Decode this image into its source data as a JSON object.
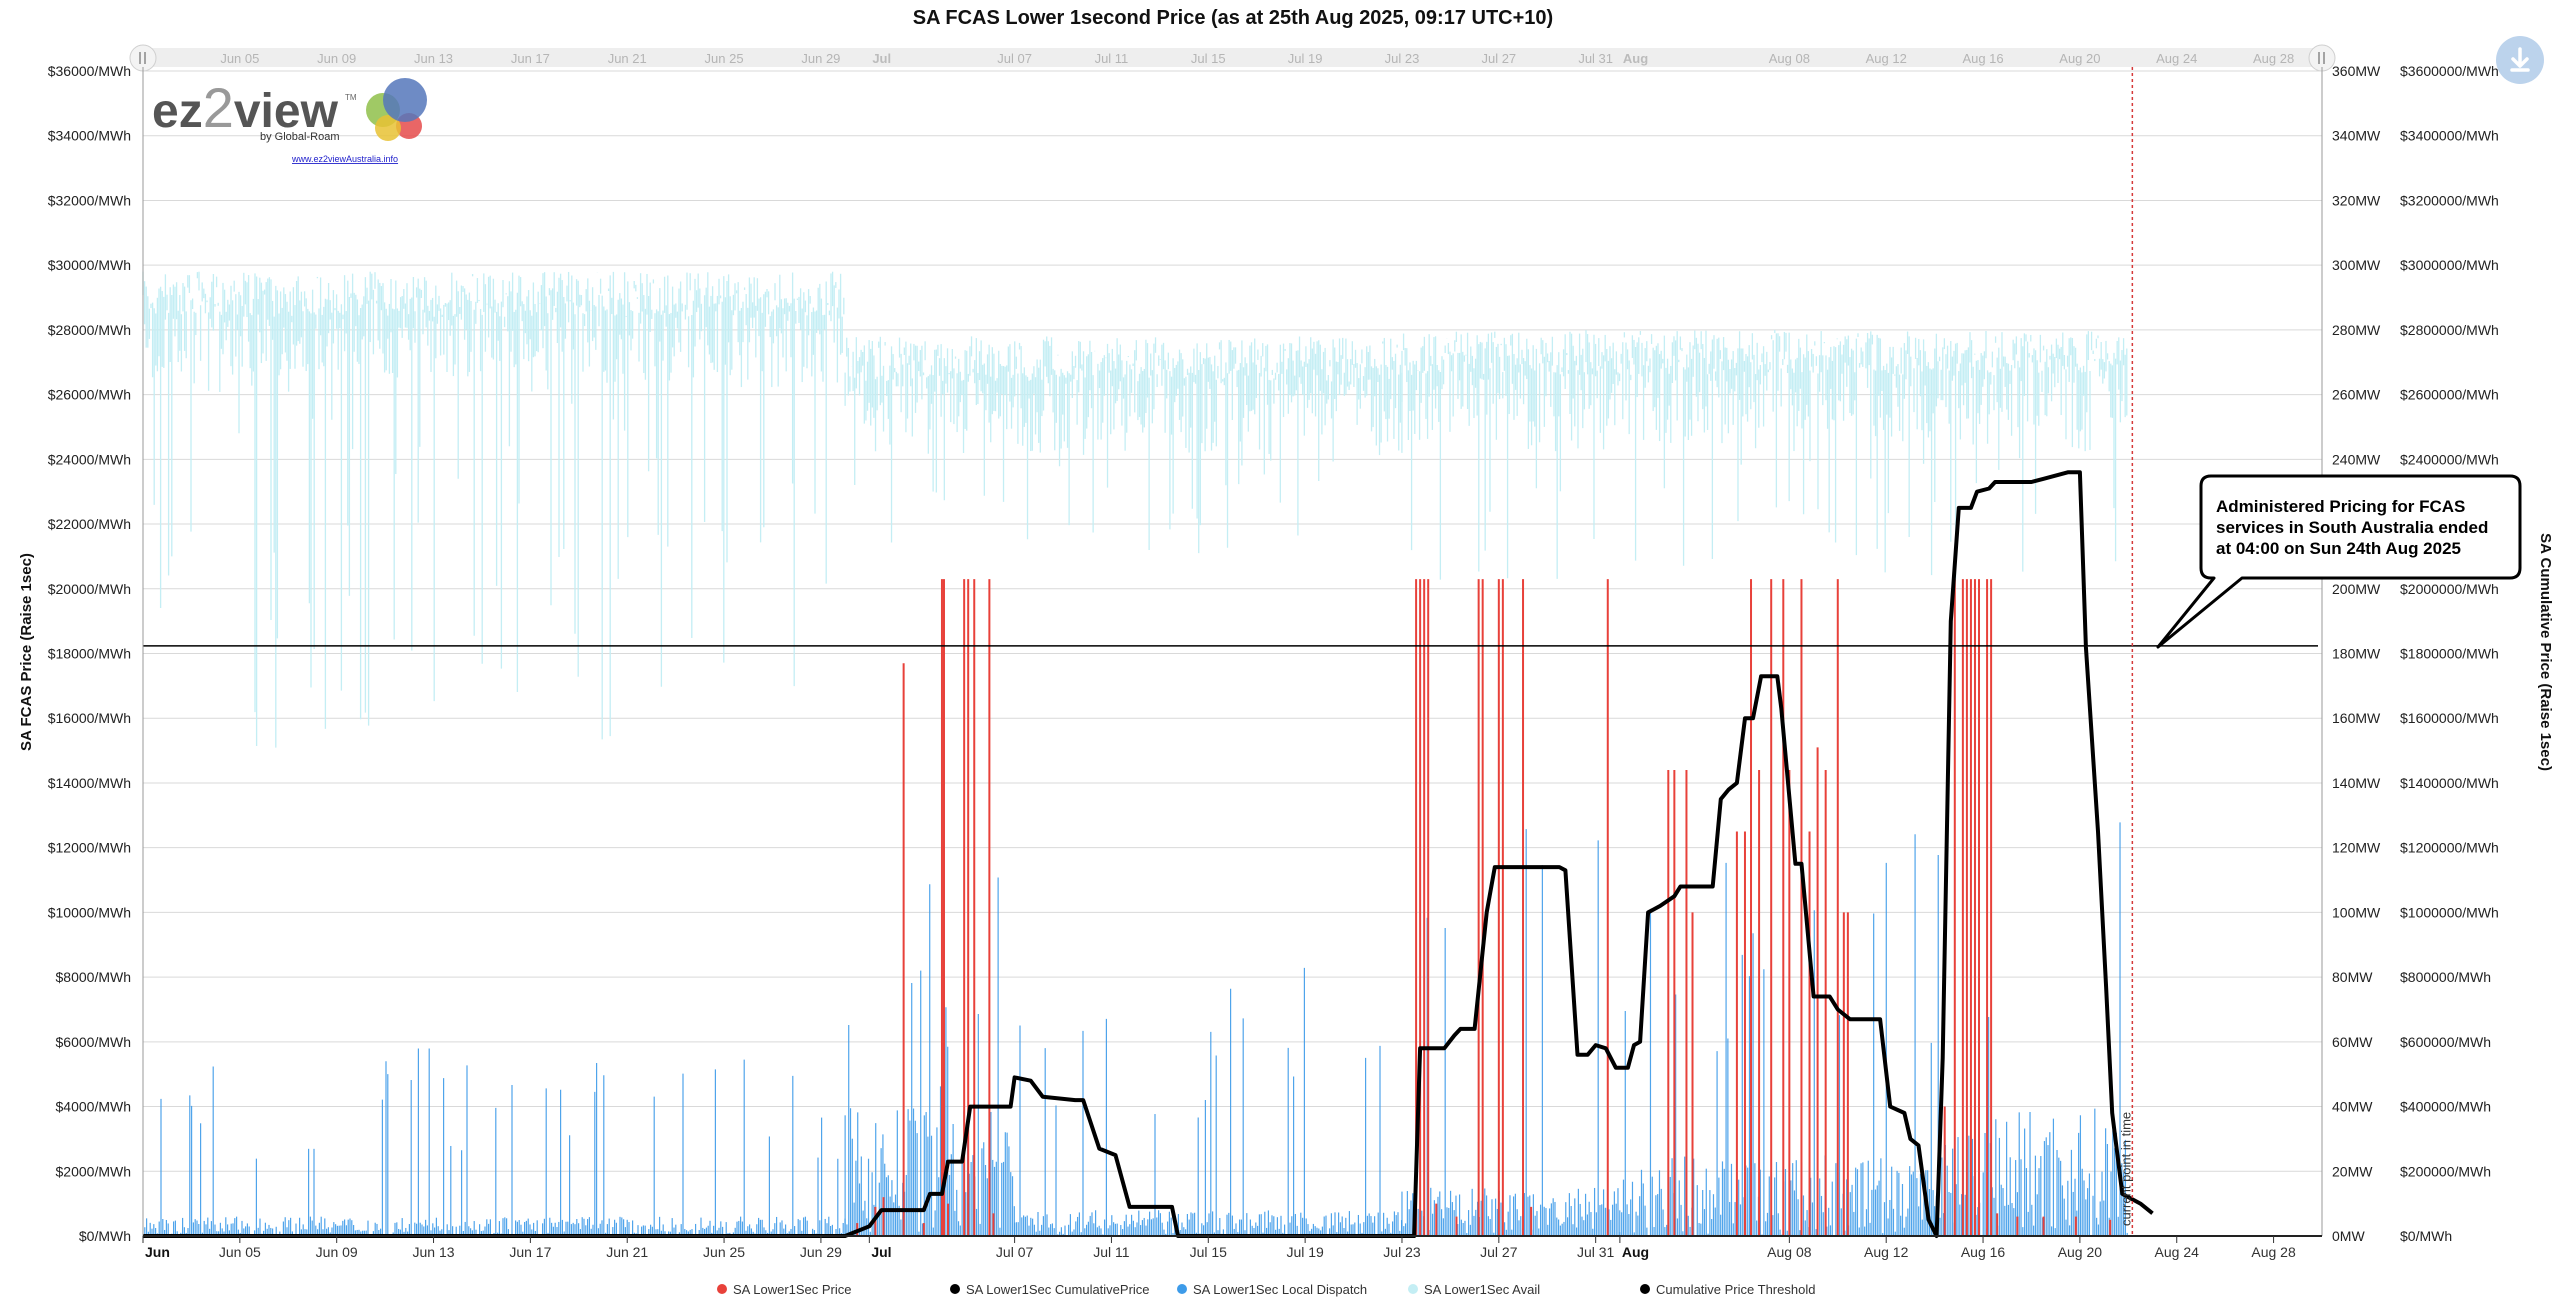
{
  "chart_data": {
    "type": "line",
    "title": "SA FCAS Lower 1second Price (as at 25th Aug 2025, 09:17 UTC+10)",
    "x_axis": {
      "start": "2025-06-01",
      "end": "2025-08-30",
      "ticks": [
        {
          "date": "2025-06-01",
          "label": "Jun",
          "bold": true
        },
        {
          "date": "2025-06-05",
          "label": "Jun 05"
        },
        {
          "date": "2025-06-09",
          "label": "Jun 09"
        },
        {
          "date": "2025-06-13",
          "label": "Jun 13"
        },
        {
          "date": "2025-06-17",
          "label": "Jun 17"
        },
        {
          "date": "2025-06-21",
          "label": "Jun 21"
        },
        {
          "date": "2025-06-25",
          "label": "Jun 25"
        },
        {
          "date": "2025-06-29",
          "label": "Jun 29"
        },
        {
          "date": "2025-07-01",
          "label": "Jul",
          "bold": true
        },
        {
          "date": "2025-07-07",
          "label": "Jul 07"
        },
        {
          "date": "2025-07-11",
          "label": "Jul 11"
        },
        {
          "date": "2025-07-15",
          "label": "Jul 15"
        },
        {
          "date": "2025-07-19",
          "label": "Jul 19"
        },
        {
          "date": "2025-07-23",
          "label": "Jul 23"
        },
        {
          "date": "2025-07-27",
          "label": "Jul 27"
        },
        {
          "date": "2025-07-31",
          "label": "Jul 31"
        },
        {
          "date": "2025-08-01",
          "label": "Aug",
          "bold": true
        },
        {
          "date": "2025-08-08",
          "label": "Aug 08"
        },
        {
          "date": "2025-08-12",
          "label": "Aug 12"
        },
        {
          "date": "2025-08-16",
          "label": "Aug 16"
        },
        {
          "date": "2025-08-20",
          "label": "Aug 20"
        },
        {
          "date": "2025-08-24",
          "label": "Aug 24"
        },
        {
          "date": "2025-08-28",
          "label": "Aug 28"
        }
      ]
    },
    "navigator_ticks": [
      {
        "date": "2025-06-01",
        "label": "Jun"
      },
      {
        "date": "2025-06-05",
        "label": "Jun 05"
      },
      {
        "date": "2025-06-09",
        "label": "Jun 09"
      },
      {
        "date": "2025-06-13",
        "label": "Jun 13"
      },
      {
        "date": "2025-06-17",
        "label": "Jun 17"
      },
      {
        "date": "2025-06-21",
        "label": "Jun 21"
      },
      {
        "date": "2025-06-25",
        "label": "Jun 25"
      },
      {
        "date": "2025-06-29",
        "label": "Jun 29"
      },
      {
        "date": "2025-07-01",
        "label": "Jul",
        "bold": true
      },
      {
        "date": "2025-07-07",
        "label": "Jul 07"
      },
      {
        "date": "2025-07-11",
        "label": "Jul 11"
      },
      {
        "date": "2025-07-15",
        "label": "Jul 15"
      },
      {
        "date": "2025-07-19",
        "label": "Jul 19"
      },
      {
        "date": "2025-07-23",
        "label": "Jul 23"
      },
      {
        "date": "2025-07-27",
        "label": "Jul 27"
      },
      {
        "date": "2025-07-31",
        "label": "Jul 31"
      },
      {
        "date": "2025-08-01",
        "label": "Aug",
        "bold": true
      },
      {
        "date": "2025-08-08",
        "label": "Aug 08"
      },
      {
        "date": "2025-08-12",
        "label": "Aug 12"
      },
      {
        "date": "2025-08-16",
        "label": "Aug 16"
      },
      {
        "date": "2025-08-20",
        "label": "Aug 20"
      },
      {
        "date": "2025-08-24",
        "label": "Aug 24"
      },
      {
        "date": "2025-08-28",
        "label": "Aug 28"
      }
    ],
    "y_axes": [
      {
        "id": "price",
        "title": "SA FCAS Price (Raise 1sec)",
        "side": "left",
        "min": 0,
        "max": 36000,
        "step": 2000,
        "tick_labels": [
          "$0/MWh",
          "$2000/MWh",
          "$4000/MWh",
          "$6000/MWh",
          "$8000/MWh",
          "$10000/MWh",
          "$12000/MWh",
          "$14000/MWh",
          "$16000/MWh",
          "$18000/MWh",
          "$20000/MWh",
          "$22000/MWh",
          "$24000/MWh",
          "$26000/MWh",
          "$28000/MWh",
          "$30000/MWh",
          "$32000/MWh",
          "$34000/MWh",
          "$36000/MWh"
        ]
      },
      {
        "id": "mw",
        "title": "",
        "side": "right",
        "min": 0,
        "max": 360,
        "step": 20,
        "tick_labels": [
          "0MW",
          "20MW",
          "40MW",
          "60MW",
          "80MW",
          "100MW",
          "120MW",
          "140MW",
          "160MW",
          "180MW",
          "200MW",
          "220MW",
          "240MW",
          "260MW",
          "280MW",
          "300MW",
          "320MW",
          "340MW",
          "360MW"
        ]
      },
      {
        "id": "cumulative",
        "title": "SA Cumulative Price (Raise 1sec)",
        "side": "right",
        "min": 0,
        "max": 3600000,
        "step": 200000,
        "tick_labels": [
          "$0/MWh",
          "$200000/MWh",
          "$400000/MWh",
          "$600000/MWh",
          "$800000/MWh",
          "$1000000/MWh",
          "$1200000/MWh",
          "$1400000/MWh",
          "$1600000/MWh",
          "$1800000/MWh",
          "$2000000/MWh",
          "$2200000/MWh",
          "$2400000/MWh",
          "$2600000/MWh",
          "$2800000/MWh",
          "$3000000/MWh",
          "$3200000/MWh",
          "$3400000/MWh",
          "$3600000/MWh"
        ]
      }
    ],
    "grid": true,
    "legend_position": "bottom",
    "series": [
      {
        "name": "SA Lower1Sec Price",
        "type": "column",
        "axis": "price",
        "color": "#e8413a",
        "spikes": [
          [
            "2025-06-30T12:00",
            400
          ],
          [
            "2025-07-01T06:00",
            900
          ],
          [
            "2025-07-01T14:00",
            1200
          ],
          [
            "2025-07-02T10:00",
            17700
          ],
          [
            "2025-07-03T06:00",
            400
          ],
          [
            "2025-07-04T00:00",
            20300
          ],
          [
            "2025-07-04T02:00",
            20300
          ],
          [
            "2025-07-04T06:00",
            1000
          ],
          [
            "2025-07-04T22:00",
            20300
          ],
          [
            "2025-07-05T02:00",
            20300
          ],
          [
            "2025-07-05T08:00",
            20300
          ],
          [
            "2025-07-05T23:00",
            20300
          ],
          [
            "2025-07-06T03:00",
            700
          ],
          [
            "2025-07-23T14:00",
            20300
          ],
          [
            "2025-07-23T18:00",
            20300
          ],
          [
            "2025-07-23T22:00",
            20300
          ],
          [
            "2025-07-24T02:00",
            20300
          ],
          [
            "2025-07-24T10:00",
            1000
          ],
          [
            "2025-07-25T06:00",
            600
          ],
          [
            "2025-07-26T04:00",
            20300
          ],
          [
            "2025-07-26T08:00",
            20300
          ],
          [
            "2025-07-27T00:00",
            20300
          ],
          [
            "2025-07-27T04:00",
            20300
          ],
          [
            "2025-07-28T00:00",
            20300
          ],
          [
            "2025-07-28T08:00",
            900
          ],
          [
            "2025-07-31T12:00",
            20300
          ],
          [
            "2025-08-03T00:00",
            14400
          ],
          [
            "2025-08-03T06:00",
            14400
          ],
          [
            "2025-08-03T18:00",
            14400
          ],
          [
            "2025-08-04T00:00",
            10000
          ],
          [
            "2025-08-05T20:00",
            12500
          ],
          [
            "2025-08-06T04:00",
            12500
          ],
          [
            "2025-08-06T10:00",
            20300
          ],
          [
            "2025-08-06T18:00",
            14400
          ],
          [
            "2025-08-07T06:00",
            20300
          ],
          [
            "2025-08-07T18:00",
            20300
          ],
          [
            "2025-08-08T00:00",
            14400
          ],
          [
            "2025-08-08T12:00",
            20300
          ],
          [
            "2025-08-08T20:00",
            12500
          ],
          [
            "2025-08-09T04:00",
            15100
          ],
          [
            "2025-08-09T12:00",
            14400
          ],
          [
            "2025-08-10T00:00",
            20300
          ],
          [
            "2025-08-10T06:00",
            10000
          ],
          [
            "2025-08-10T10:00",
            10000
          ],
          [
            "2025-08-14T10:00",
            4000
          ],
          [
            "2025-08-14T20:00",
            20300
          ],
          [
            "2025-08-15T04:00",
            20300
          ],
          [
            "2025-08-15T08:00",
            20300
          ],
          [
            "2025-08-15T12:00",
            20300
          ],
          [
            "2025-08-15T16:00",
            20300
          ],
          [
            "2025-08-15T20:00",
            20300
          ],
          [
            "2025-08-16T04:00",
            20300
          ],
          [
            "2025-08-16T08:00",
            20300
          ],
          [
            "2025-08-16T14:00",
            700
          ],
          [
            "2025-08-17T10:00",
            600
          ],
          [
            "2025-08-18T12:00",
            600
          ],
          [
            "2025-08-19T20:00",
            600
          ],
          [
            "2025-08-21T06:00",
            500
          ]
        ]
      },
      {
        "name": "SA Lower1Sec CumulativePrice",
        "type": "line",
        "axis": "cumulative",
        "color": "#000000",
        "points": [
          [
            "2025-06-01T00:00",
            0
          ],
          [
            "2025-06-30T00:00",
            0
          ],
          [
            "2025-07-01T00:00",
            30000
          ],
          [
            "2025-07-01T12:00",
            80000
          ],
          [
            "2025-07-03T06:00",
            80000
          ],
          [
            "2025-07-03T12:00",
            130000
          ],
          [
            "2025-07-04T00:00",
            130000
          ],
          [
            "2025-07-04T06:00",
            230000
          ],
          [
            "2025-07-04T20:00",
            230000
          ],
          [
            "2025-07-05T04:00",
            400000
          ],
          [
            "2025-07-06T00:00",
            400000
          ],
          [
            "2025-07-06T20:00",
            400000
          ],
          [
            "2025-07-07T00:00",
            490000
          ],
          [
            "2025-07-07T16:00",
            480000
          ],
          [
            "2025-07-08T04:00",
            430000
          ],
          [
            "2025-07-09T12:00",
            420000
          ],
          [
            "2025-07-09T20:00",
            420000
          ],
          [
            "2025-07-10T12:00",
            270000
          ],
          [
            "2025-07-11T04:00",
            250000
          ],
          [
            "2025-07-11T18:00",
            90000
          ],
          [
            "2025-07-13T12:00",
            90000
          ],
          [
            "2025-07-13T18:00",
            0
          ],
          [
            "2025-07-23T12:00",
            0
          ],
          [
            "2025-07-23T18:00",
            580000
          ],
          [
            "2025-07-24T18:00",
            580000
          ],
          [
            "2025-07-25T04:00",
            620000
          ],
          [
            "2025-07-25T10:00",
            640000
          ],
          [
            "2025-07-26T00:00",
            640000
          ],
          [
            "2025-07-26T12:00",
            1000000
          ],
          [
            "2025-07-26T20:00",
            1140000
          ],
          [
            "2025-07-29T12:00",
            1140000
          ],
          [
            "2025-07-29T18:00",
            1130000
          ],
          [
            "2025-07-30T06:00",
            560000
          ],
          [
            "2025-07-30T16:00",
            560000
          ],
          [
            "2025-07-31T00:00",
            590000
          ],
          [
            "2025-07-31T10:00",
            580000
          ],
          [
            "2025-07-31T20:00",
            520000
          ],
          [
            "2025-08-01T08:00",
            520000
          ],
          [
            "2025-08-01T14:00",
            590000
          ],
          [
            "2025-08-01T20:00",
            600000
          ],
          [
            "2025-08-02T04:00",
            1000000
          ],
          [
            "2025-08-02T16:00",
            1020000
          ],
          [
            "2025-08-03T06:00",
            1050000
          ],
          [
            "2025-08-03T12:00",
            1080000
          ],
          [
            "2025-08-04T20:00",
            1080000
          ],
          [
            "2025-08-05T04:00",
            1350000
          ],
          [
            "2025-08-05T12:00",
            1380000
          ],
          [
            "2025-08-05T20:00",
            1400000
          ],
          [
            "2025-08-06T04:00",
            1600000
          ],
          [
            "2025-08-06T12:00",
            1600000
          ],
          [
            "2025-08-06T20:00",
            1730000
          ],
          [
            "2025-08-07T12:00",
            1730000
          ],
          [
            "2025-08-07T16:00",
            1630000
          ],
          [
            "2025-08-08T06:00",
            1150000
          ],
          [
            "2025-08-08T12:00",
            1150000
          ],
          [
            "2025-08-09T00:00",
            740000
          ],
          [
            "2025-08-09T16:00",
            740000
          ],
          [
            "2025-08-10T00:00",
            700000
          ],
          [
            "2025-08-10T12:00",
            670000
          ],
          [
            "2025-08-11T18:00",
            670000
          ],
          [
            "2025-08-12T04:00",
            400000
          ],
          [
            "2025-08-12T18:00",
            380000
          ],
          [
            "2025-08-13T00:00",
            300000
          ],
          [
            "2025-08-13T08:00",
            280000
          ],
          [
            "2025-08-13T18:00",
            50000
          ],
          [
            "2025-08-14T02:00",
            0
          ],
          [
            "2025-08-14T08:00",
            550000
          ],
          [
            "2025-08-14T16:00",
            1900000
          ],
          [
            "2025-08-15T00:00",
            2250000
          ],
          [
            "2025-08-15T12:00",
            2250000
          ],
          [
            "2025-08-15T18:00",
            2300000
          ],
          [
            "2025-08-16T06:00",
            2310000
          ],
          [
            "2025-08-16T12:00",
            2330000
          ],
          [
            "2025-08-18T00:00",
            2330000
          ],
          [
            "2025-08-18T12:00",
            2340000
          ],
          [
            "2025-08-19T12:00",
            2360000
          ],
          [
            "2025-08-20T00:00",
            2360000
          ],
          [
            "2025-08-20T06:00",
            1820000
          ],
          [
            "2025-08-20T18:00",
            1250000
          ],
          [
            "2025-08-21T02:00",
            770000
          ],
          [
            "2025-08-21T08:00",
            380000
          ],
          [
            "2025-08-21T18:00",
            130000
          ],
          [
            "2025-08-22T12:00",
            100000
          ],
          [
            "2025-08-23T00:00",
            70000
          ]
        ]
      },
      {
        "name": "SA Lower1Sec Local Dispatch",
        "type": "area",
        "axis": "mw",
        "color": "#3d9be9",
        "profile": [
          {
            "from": "2025-06-01",
            "to": "2025-06-30",
            "typical": 6,
            "peak": 58
          },
          {
            "from": "2025-06-30",
            "to": "2025-07-07",
            "typical": 40,
            "peak": 113
          },
          {
            "from": "2025-07-07",
            "to": "2025-07-23",
            "typical": 8,
            "peak": 88
          },
          {
            "from": "2025-07-23",
            "to": "2025-08-01",
            "typical": 15,
            "peak": 128
          },
          {
            "from": "2025-08-01",
            "to": "2025-08-14",
            "typical": 25,
            "peak": 125
          },
          {
            "from": "2025-08-14",
            "to": "2025-08-22",
            "typical": 40,
            "peak": 128
          }
        ]
      },
      {
        "name": "SA Lower1Sec Avail",
        "type": "area",
        "axis": "mw",
        "color": "#c4eef4",
        "profile": [
          {
            "from": "2025-06-01",
            "to": "2025-06-30",
            "typical": 298,
            "low": 150
          },
          {
            "from": "2025-06-30",
            "to": "2025-07-23",
            "typical": 278,
            "low": 210
          },
          {
            "from": "2025-07-23",
            "to": "2025-08-22",
            "typical": 280,
            "low": 200
          }
        ]
      },
      {
        "name": "Cumulative Price Threshold",
        "type": "line",
        "axis": "cumulative",
        "color": "#000000",
        "value": 1823500
      }
    ],
    "annotations": [
      {
        "text_lines": [
          "Administered Pricing for FCAS",
          "services in South Australia ended",
          "at 04:00 on Sun 24th Aug 2025"
        ],
        "points_to_date": "2025-08-22T06:00",
        "points_to_value": 1823500
      },
      {
        "text": "current point in time",
        "date": "2025-08-22T04:00"
      }
    ]
  },
  "logo": {
    "brand_prefix": "ez",
    "brand_number": "2",
    "brand_suffix": "view",
    "trademark": "TM",
    "byline": "by Global-Roam",
    "url": "www.ez2viewAustralia.info"
  },
  "colors": {
    "price": "#e8413a",
    "cumulative": "#000000",
    "dispatch": "#3d9be9",
    "avail": "#c4eef4",
    "grid": "#d9d9d9",
    "current_time_line": "#d63a3a"
  },
  "icons": {
    "export": "download-icon"
  }
}
